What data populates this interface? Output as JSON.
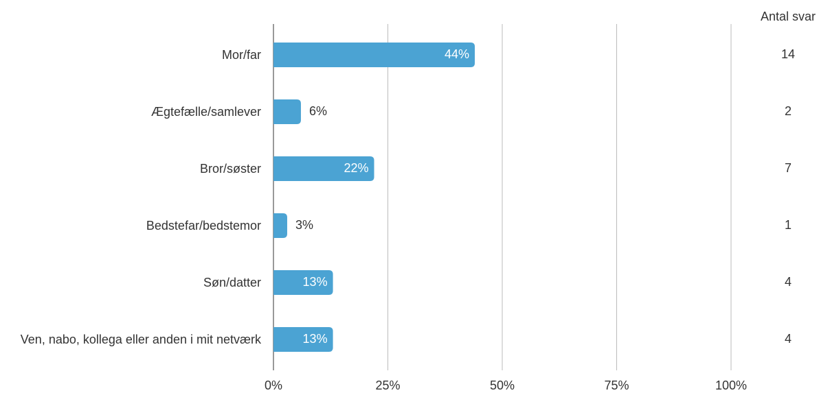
{
  "chart_data": {
    "type": "bar",
    "categories": [
      "Mor/far",
      "Ægtefælle/samlever",
      "Bror/søster",
      "Bedstefar/bedstemor",
      "Søn/datter",
      "Ven, nabo, kollega eller anden i mit netværk"
    ],
    "values": [
      44,
      6,
      22,
      3,
      13,
      13
    ],
    "value_labels": [
      "44%",
      "6%",
      "22%",
      "3%",
      "13%",
      "13%"
    ],
    "color": "#4ba3d3",
    "xlim": [
      0,
      100
    ],
    "xticks": [
      {
        "value": 0,
        "label": "0%"
      },
      {
        "value": 25,
        "label": "25%"
      },
      {
        "value": 50,
        "label": "50%"
      },
      {
        "value": 75,
        "label": "75%"
      },
      {
        "value": 100,
        "label": "100%"
      }
    ],
    "grid": true,
    "count_header": "Antal svar",
    "counts": [
      14,
      2,
      7,
      1,
      4,
      4
    ]
  }
}
